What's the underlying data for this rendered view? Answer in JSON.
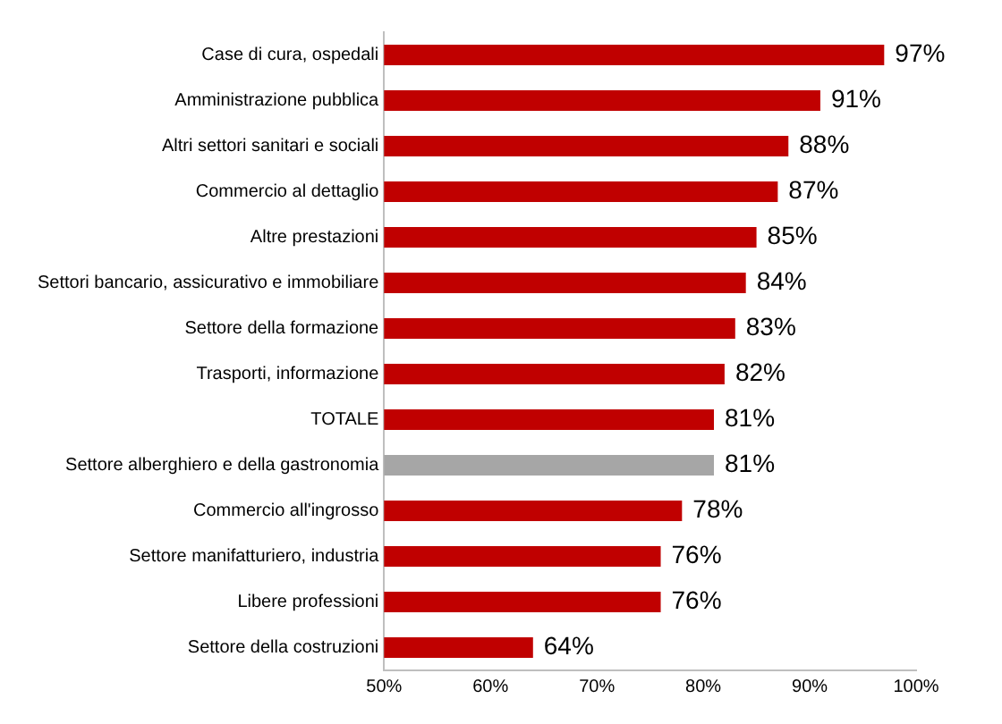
{
  "chart_data": {
    "type": "bar",
    "orientation": "horizontal",
    "categories": [
      "Case di cura, ospedali",
      "Amministrazione pubblica",
      "Altri settori sanitari e sociali",
      "Commercio al dettaglio",
      "Altre prestazioni",
      "Settori bancario, assicurativo e immobiliare",
      "Settore della formazione",
      "Trasporti, informazione",
      "TOTALE",
      "Settore alberghiero e della gastronomia",
      "Commercio all'ingrosso",
      "Settore manifatturiero, industria",
      "Libere professioni",
      "Settore della costruzioni"
    ],
    "values": [
      97,
      91,
      88,
      87,
      85,
      84,
      83,
      82,
      81,
      81,
      78,
      76,
      76,
      64
    ],
    "value_labels": [
      "97%",
      "91%",
      "88%",
      "87%",
      "85%",
      "84%",
      "83%",
      "82%",
      "81%",
      "81%",
      "78%",
      "76%",
      "76%",
      "64%"
    ],
    "colors": [
      "#c00000",
      "#c00000",
      "#c00000",
      "#c00000",
      "#c00000",
      "#c00000",
      "#c00000",
      "#c00000",
      "#c00000",
      "#a6a6a6",
      "#c00000",
      "#c00000",
      "#c00000",
      "#c00000"
    ],
    "xlim": [
      50,
      100
    ],
    "xticks": [
      {
        "value": 50,
        "label": "50%"
      },
      {
        "value": 60,
        "label": "60%"
      },
      {
        "value": 70,
        "label": "70%"
      },
      {
        "value": 80,
        "label": "80%"
      },
      {
        "value": 90,
        "label": "90%"
      },
      {
        "value": 100,
        "label": "100%"
      }
    ],
    "grid": false,
    "legend": false
  }
}
